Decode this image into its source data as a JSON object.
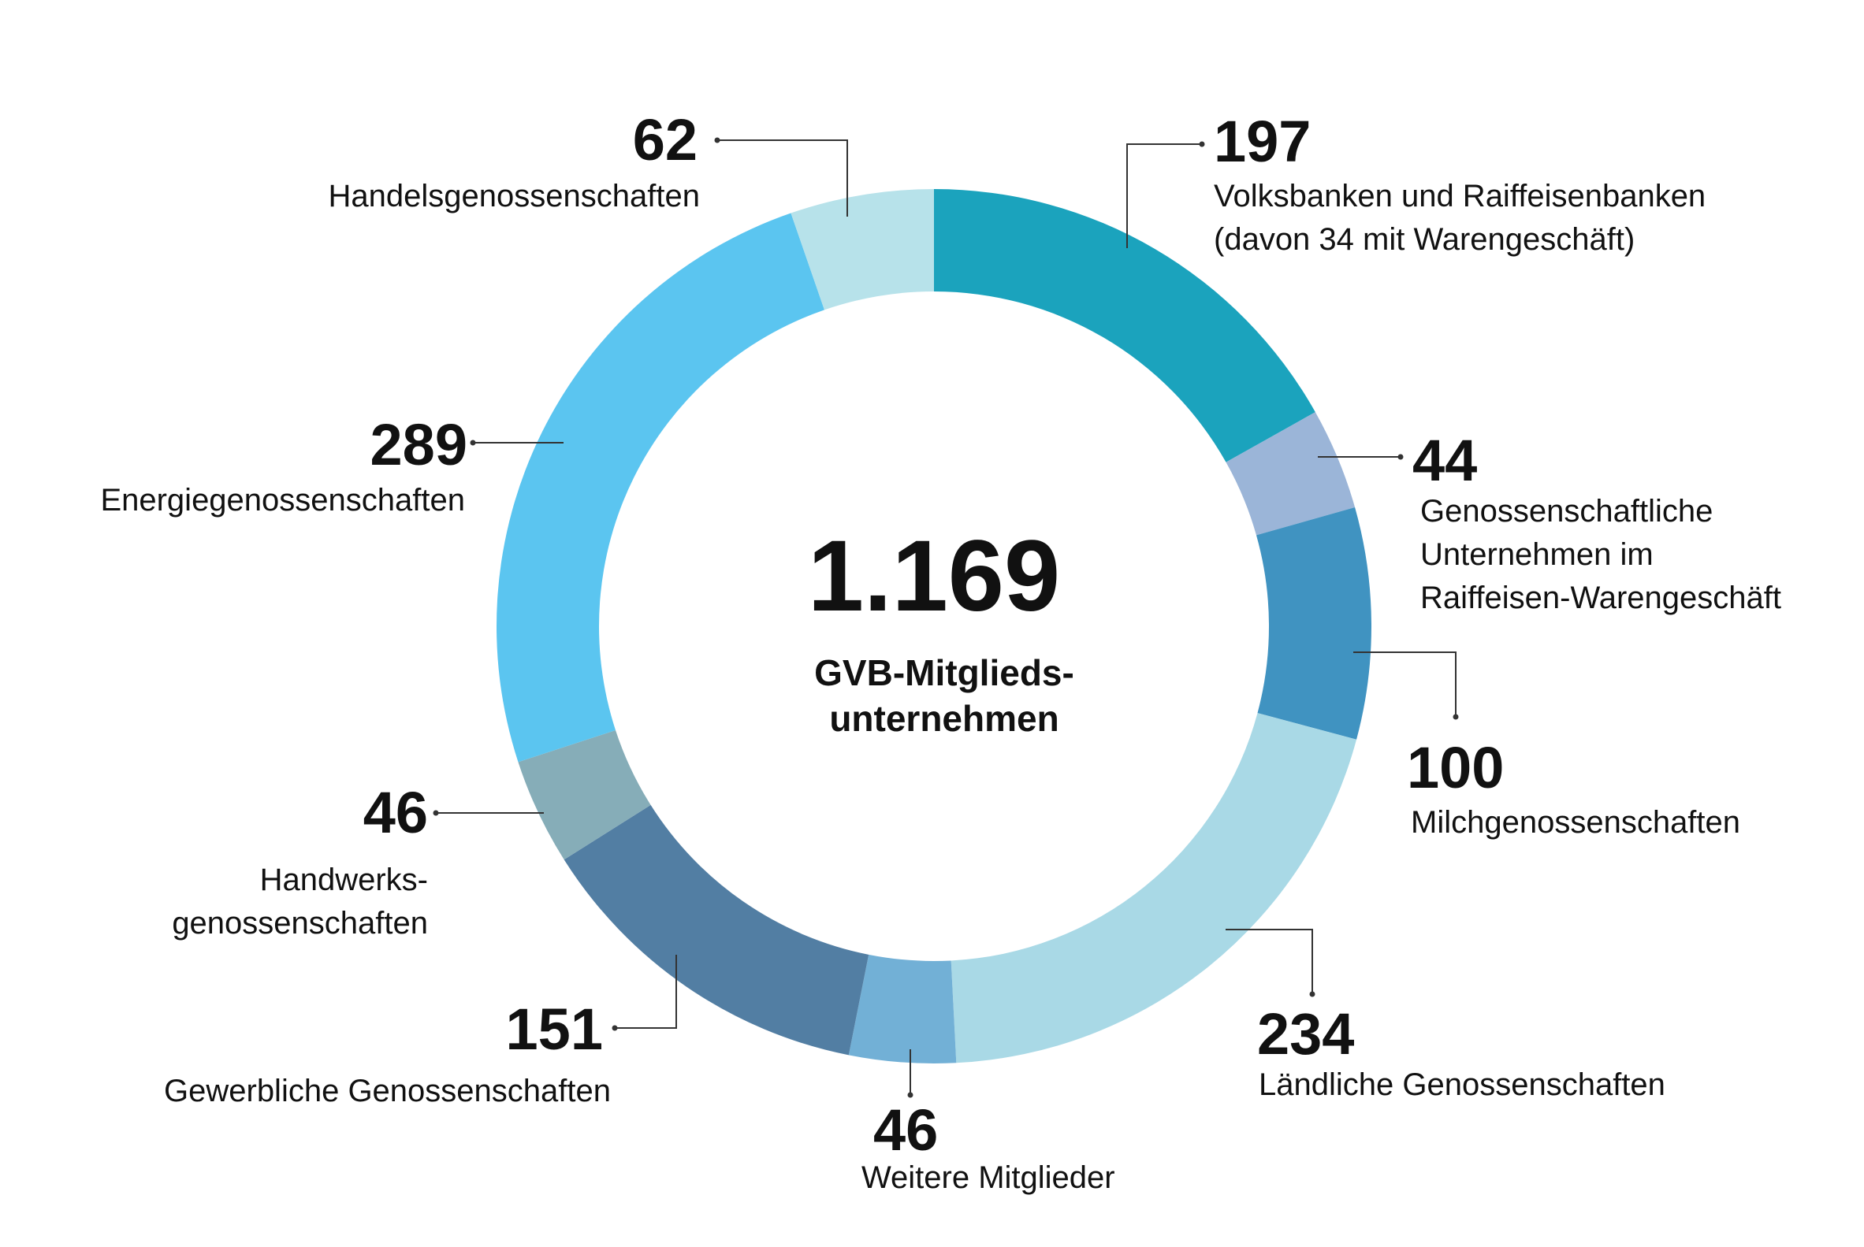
{
  "chart_data": {
    "type": "pie",
    "center": {
      "total": "1.169",
      "caption_lines": [
        "GVB-Mitglieds-",
        "unternehmen"
      ]
    },
    "slices": [
      {
        "name": "Volksbanken und Raiffeisenbanken",
        "label_lines": [
          "Volksbanken und Raiffeisenbanken",
          "(davon 34 mit Warengeschäft)"
        ],
        "value": 197,
        "value_label": "197",
        "color": "#1ba3bd"
      },
      {
        "name": "Genossenschaftliche Unternehmen im Raiffeisen-Warengeschäft",
        "label_lines": [
          "Genossenschaftliche",
          "Unternehmen im",
          "Raiffeisen-Warengeschäft"
        ],
        "value": 44,
        "value_label": "44",
        "color": "#9bb5d8"
      },
      {
        "name": "Milchgenossenschaften",
        "label_lines": [
          "Milchgenossenschaften"
        ],
        "value": 100,
        "value_label": "100",
        "color": "#4093c1"
      },
      {
        "name": "Ländliche Genossenschaften",
        "label_lines": [
          "Ländliche Genossenschaften"
        ],
        "value": 234,
        "value_label": "234",
        "color": "#a9d9e6"
      },
      {
        "name": "Weitere Mitglieder",
        "label_lines": [
          "Weitere Mitglieder"
        ],
        "value": 46,
        "value_label": "46",
        "color": "#72b0d6"
      },
      {
        "name": "Gewerbliche Genossenschaften",
        "label_lines": [
          "Gewerbliche Genossenschaften"
        ],
        "value": 151,
        "value_label": "151",
        "color": "#527ea3"
      },
      {
        "name": "Handwerksgenossenschaften",
        "label_lines": [
          "Handwerks-",
          "genossenschaften"
        ],
        "value": 46,
        "value_label": "46",
        "color": "#86adb8"
      },
      {
        "name": "Energiegenossenschaften",
        "label_lines": [
          "Energiegenossenschaften"
        ],
        "value": 289,
        "value_label": "289",
        "color": "#5bc5f0"
      },
      {
        "name": "Handelsgenossenschaften",
        "label_lines": [
          "Handelsgenossenschaften"
        ],
        "value": 62,
        "value_label": "62",
        "color": "#b7e2ea"
      }
    ]
  }
}
